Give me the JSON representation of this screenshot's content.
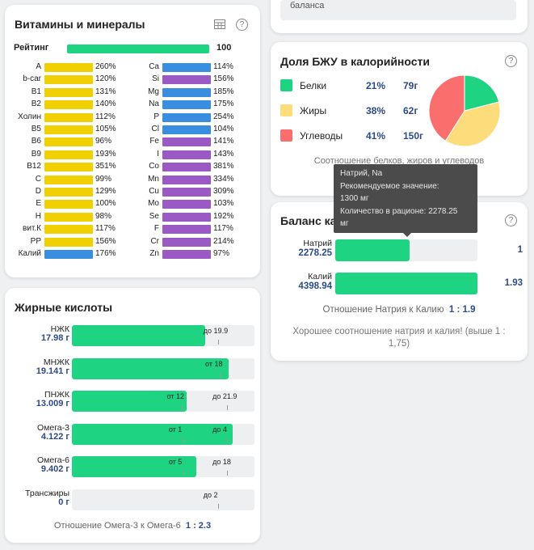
{
  "top_card": {
    "text": "баланса"
  },
  "vitamins": {
    "title": "Витамины и минералы",
    "rating_label": "Рейтинг",
    "rating_value": "100",
    "colors": {
      "vitamin": "#f7d417",
      "mineral_blue": "#3a8ee0",
      "mineral_purple": "#9b59c6"
    },
    "left": [
      {
        "label": "A",
        "value": "260%",
        "pct": 260,
        "color": "#f0d000"
      },
      {
        "label": "b-car",
        "value": "120%",
        "pct": 120,
        "color": "#f0d000"
      },
      {
        "label": "B1",
        "value": "131%",
        "pct": 131,
        "color": "#f0d000"
      },
      {
        "label": "B2",
        "value": "140%",
        "pct": 140,
        "color": "#f0d000"
      },
      {
        "label": "Холин",
        "value": "112%",
        "pct": 112,
        "color": "#f0d000"
      },
      {
        "label": "B5",
        "value": "105%",
        "pct": 105,
        "color": "#f0d000"
      },
      {
        "label": "B6",
        "value": "96%",
        "pct": 96,
        "color": "#f0d000"
      },
      {
        "label": "B9",
        "value": "193%",
        "pct": 193,
        "color": "#f0d000"
      },
      {
        "label": "B12",
        "value": "351%",
        "pct": 351,
        "color": "#f0d000"
      },
      {
        "label": "C",
        "value": "99%",
        "pct": 99,
        "color": "#f0d000"
      },
      {
        "label": "D",
        "value": "129%",
        "pct": 129,
        "color": "#f0d000"
      },
      {
        "label": "E",
        "value": "100%",
        "pct": 100,
        "color": "#f0d000"
      },
      {
        "label": "H",
        "value": "98%",
        "pct": 98,
        "color": "#f0d000"
      },
      {
        "label": "вит.К",
        "value": "117%",
        "pct": 117,
        "color": "#f0d000"
      },
      {
        "label": "PP",
        "value": "156%",
        "pct": 156,
        "color": "#f0d000"
      },
      {
        "label": "Калий",
        "value": "176%",
        "pct": 176,
        "color": "#3a8ee0"
      }
    ],
    "right": [
      {
        "label": "Ca",
        "value": "114%",
        "pct": 114,
        "color": "#3a8ee0"
      },
      {
        "label": "Si",
        "value": "156%",
        "pct": 156,
        "color": "#9b59c6"
      },
      {
        "label": "Mg",
        "value": "185%",
        "pct": 185,
        "color": "#3a8ee0"
      },
      {
        "label": "Na",
        "value": "175%",
        "pct": 175,
        "color": "#3a8ee0"
      },
      {
        "label": "P",
        "value": "254%",
        "pct": 254,
        "color": "#3a8ee0"
      },
      {
        "label": "Cl",
        "value": "104%",
        "pct": 104,
        "color": "#3a8ee0"
      },
      {
        "label": "Fe",
        "value": "141%",
        "pct": 141,
        "color": "#9b59c6"
      },
      {
        "label": "I",
        "value": "143%",
        "pct": 143,
        "color": "#9b59c6"
      },
      {
        "label": "Co",
        "value": "381%",
        "pct": 381,
        "color": "#9b59c6"
      },
      {
        "label": "Mn",
        "value": "334%",
        "pct": 334,
        "color": "#9b59c6"
      },
      {
        "label": "Cu",
        "value": "309%",
        "pct": 309,
        "color": "#9b59c6"
      },
      {
        "label": "Mo",
        "value": "103%",
        "pct": 103,
        "color": "#9b59c6"
      },
      {
        "label": "Se",
        "value": "192%",
        "pct": 192,
        "color": "#9b59c6"
      },
      {
        "label": "F",
        "value": "117%",
        "pct": 117,
        "color": "#9b59c6"
      },
      {
        "label": "Cr",
        "value": "214%",
        "pct": 214,
        "color": "#9b59c6"
      },
      {
        "label": "Zn",
        "value": "97%",
        "pct": 97,
        "color": "#9b59c6"
      }
    ]
  },
  "fats": {
    "title": "Жирные кислоты",
    "rows": [
      {
        "name": "НЖК",
        "value": "17.98 г",
        "fill_pct": 73,
        "ticks": [
          {
            "text": "до 19.9",
            "pos": 80
          }
        ]
      },
      {
        "name": "МНЖК",
        "value": "19.141 г",
        "fill_pct": 86,
        "ticks": [
          {
            "text": "от 18",
            "pos": 81
          }
        ]
      },
      {
        "name": "ПНЖК",
        "value": "13.009 г",
        "fill_pct": 63,
        "ticks": [
          {
            "text": "от 12",
            "pos": 60
          },
          {
            "text": "до 21.9",
            "pos": 85
          }
        ]
      },
      {
        "name": "Омега-3",
        "value": "4.122 г",
        "fill_pct": 88,
        "ticks": [
          {
            "text": "от 1",
            "pos": 61
          },
          {
            "text": "до 4",
            "pos": 85
          }
        ]
      },
      {
        "name": "Омега-6",
        "value": "9.402 г",
        "fill_pct": 68,
        "ticks": [
          {
            "text": "от 5",
            "pos": 61
          },
          {
            "text": "до 18",
            "pos": 85
          }
        ]
      },
      {
        "name": "Трансжиры",
        "value": "0 г",
        "fill_pct": 0,
        "ticks": [
          {
            "text": "до 2",
            "pos": 80
          }
        ]
      }
    ],
    "ratio_label": "Отношение Омега-3 к Омега-6",
    "ratio_value": "1 : 2.3"
  },
  "bju": {
    "title": "Доля БЖУ в калорийности",
    "rows": [
      {
        "name": "Белки",
        "pct": "21%",
        "grams": "79г",
        "color": "#1ed381"
      },
      {
        "name": "Жиры",
        "pct": "38%",
        "grams": "62г",
        "color": "#fddc7c"
      },
      {
        "name": "Углеводы",
        "pct": "41%",
        "grams": "150г",
        "color": "#fa6e6e"
      }
    ],
    "chart_data": {
      "type": "pie",
      "categories": [
        "Белки",
        "Жиры",
        "Углеводы"
      ],
      "values": [
        21,
        38,
        41
      ],
      "colors": [
        "#1ed381",
        "#fddc7c",
        "#fa6e6e"
      ]
    },
    "caption": "Соотношение белков, жиров и углеводов"
  },
  "balance": {
    "title": "Баланс калия и натрия",
    "rows": [
      {
        "name": "Натрий",
        "value": "2278.25",
        "fill_pct": 52,
        "num": "1"
      },
      {
        "name": "Калий",
        "value": "4398.94",
        "fill_pct": 100,
        "num": "1.93"
      }
    ],
    "ratio_label": "Отношение Натрия к Калию",
    "ratio_value": "1 : 1.9",
    "note": "Хорошее соотношение натрия и калия! (выше 1 : 1,75)"
  },
  "tooltip": {
    "title": "Натрий, Na",
    "rec_label": "Рекомендуемое значение:",
    "rec_value": "1300 мг",
    "amount_label": "Количество в рационе: 2278.25",
    "amount_unit": "мг"
  }
}
